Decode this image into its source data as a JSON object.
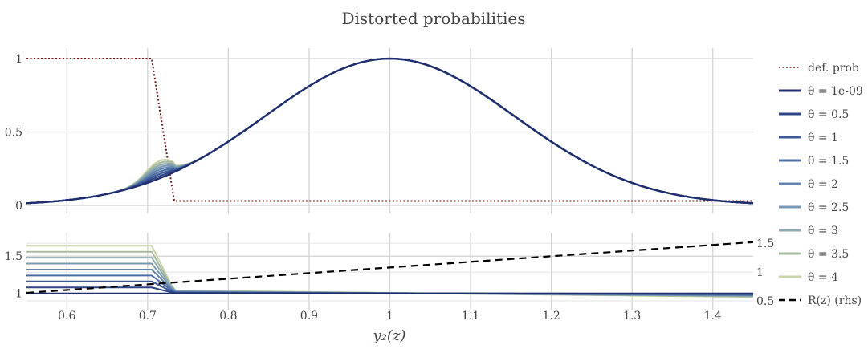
{
  "chart_data": {
    "type": "line",
    "title": "Distorted probabilities",
    "xlabel": "y₂(z)",
    "xlim": [
      0.55,
      1.45
    ],
    "xticks": [
      0.6,
      0.7,
      0.8,
      0.9,
      1,
      1.1,
      1.2,
      1.3,
      1.4
    ],
    "xtick_labels": [
      "0.6",
      "0.7",
      "0.8",
      "0.9",
      "1",
      "1.1",
      "1.2",
      "1.3",
      "1.4"
    ],
    "grid": true,
    "legend_position": "right",
    "panels": [
      {
        "name": "top",
        "ylim": [
          0,
          1
        ],
        "yticks": [
          0,
          0.5,
          1
        ],
        "ytick_labels": [
          "0",
          "0.5",
          "1"
        ],
        "def_prob": {
          "name": "def. prob",
          "color": "#6b1a1a",
          "x": [
            0.55,
            0.705,
            0.733,
            1.45
          ],
          "y": [
            1,
            1,
            0.03,
            0.03
          ]
        },
        "distorted_density_mean": 1.0,
        "distorted_density_sd": 0.155
      },
      {
        "name": "bottom",
        "ylim_left": [
          0.9,
          1.75
        ],
        "yticks_left": [
          1,
          1.5
        ],
        "ytick_labels_left": [
          "1",
          "1.5"
        ],
        "ylim_right": [
          0.5,
          1.6
        ],
        "yticks_right": [
          0.5,
          1,
          1.5
        ],
        "ytick_labels_right": [
          "0.5",
          "1",
          "1.5"
        ],
        "rhs_series": {
          "name": "R(z) (rhs)",
          "color": "#000000",
          "x": [
            0.55,
            1.45
          ],
          "y": [
            0.64,
            1.52
          ]
        }
      }
    ],
    "series": [
      {
        "name": "θ = 1e-09",
        "theta": "1e-09",
        "color": "#1f2d6e",
        "bump": 0.0,
        "plateau": 1.0,
        "tail": 0.0
      },
      {
        "name": "θ = 0.5",
        "theta": "0.5",
        "color": "#2e4484",
        "bump": 0.015,
        "plateau": 1.08,
        "tail": 0.01
      },
      {
        "name": "θ = 1",
        "theta": "1",
        "color": "#3d5a96",
        "bump": 0.03,
        "plateau": 1.16,
        "tail": 0.02
      },
      {
        "name": "θ = 1.5",
        "theta": "1.5",
        "color": "#4e6fa3",
        "bump": 0.045,
        "plateau": 1.24,
        "tail": 0.03
      },
      {
        "name": "θ = 2",
        "theta": "2",
        "color": "#6384ae",
        "bump": 0.06,
        "plateau": 1.32,
        "tail": 0.04
      },
      {
        "name": "θ = 2.5",
        "theta": "2.5",
        "color": "#7898b3",
        "bump": 0.075,
        "plateau": 1.4,
        "tail": 0.05
      },
      {
        "name": "θ = 3",
        "theta": "3",
        "color": "#8eaab0",
        "bump": 0.09,
        "plateau": 1.48,
        "tail": 0.06
      },
      {
        "name": "θ = 3.5",
        "theta": "3.5",
        "color": "#a8bba0",
        "bump": 0.105,
        "plateau": 1.56,
        "tail": 0.07
      },
      {
        "name": "θ = 4",
        "theta": "4",
        "color": "#c9d4a9",
        "bump": 0.12,
        "plateau": 1.64,
        "tail": 0.08
      }
    ]
  }
}
